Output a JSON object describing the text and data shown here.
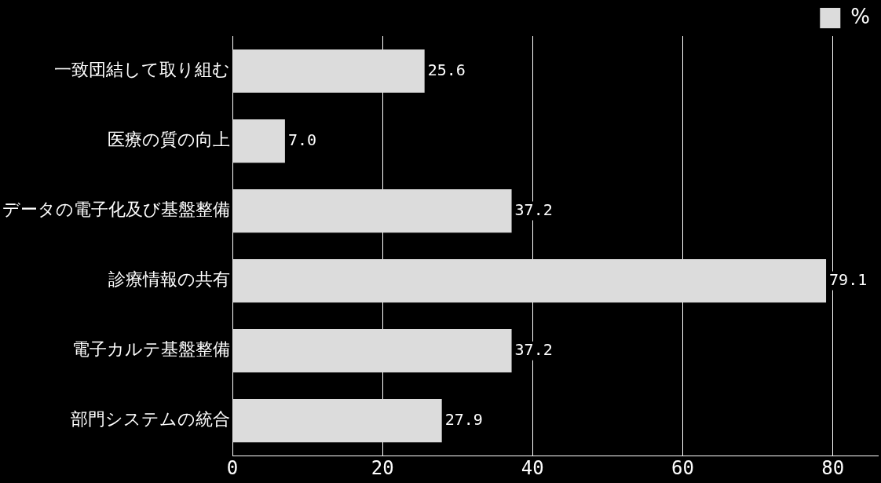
{
  "chart_data": {
    "type": "bar",
    "orientation": "horizontal",
    "categories": [
      "一致団結して取り組む",
      "医療の質の向上",
      "データの電子化及び基盤整備",
      "診療情報の共有",
      "電子カルテ基盤整備",
      "部門システムの統合"
    ],
    "series": [
      {
        "name": "%",
        "color": "#dcdcdc",
        "values": [
          25.6,
          7.0,
          37.2,
          79.1,
          37.2,
          27.9
        ],
        "value_labels": [
          "25.6",
          "7.0",
          "37.2",
          "79.1",
          "37.2",
          "27.9"
        ]
      }
    ],
    "xlim": [
      0,
      86
    ],
    "xticks": [
      0,
      20,
      40,
      60,
      80
    ],
    "grid": "x",
    "legend": "top"
  }
}
